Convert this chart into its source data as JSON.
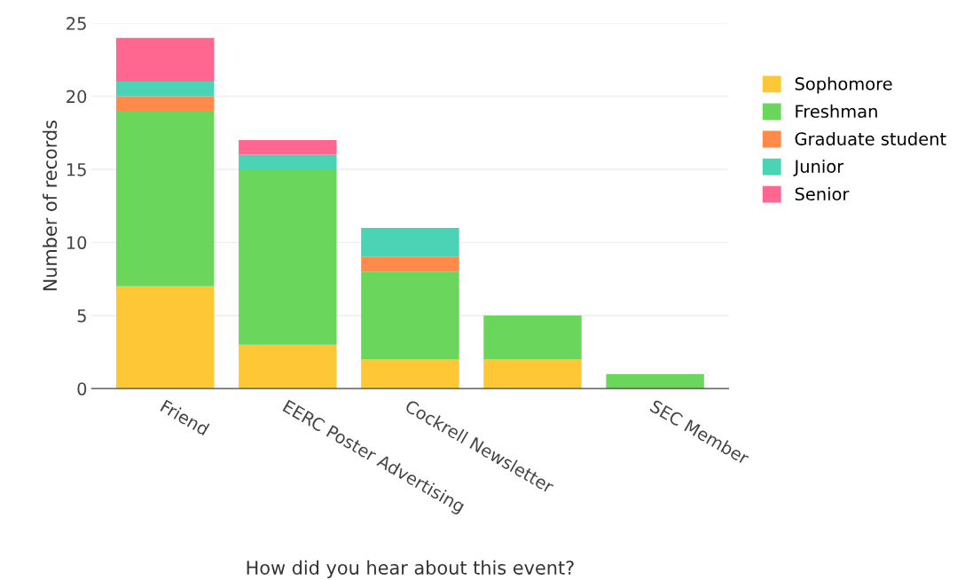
{
  "chart_data": {
    "type": "bar",
    "stacked": true,
    "xlabel": "How did you hear about this event?",
    "ylabel": "Number of records",
    "categories": [
      "Friend",
      "EERC Poster Advertising",
      "Cockrell Newsletter",
      null,
      "SEC Member"
    ],
    "series": [
      {
        "name": "Sophomore",
        "color": "#fdc735",
        "values": [
          7,
          3,
          2,
          2,
          0
        ]
      },
      {
        "name": "Freshman",
        "color": "#6bd65c",
        "values": [
          12,
          12,
          6,
          3,
          1
        ]
      },
      {
        "name": "Graduate student",
        "color": "#ff8a4a",
        "values": [
          1,
          0,
          1,
          0,
          0
        ]
      },
      {
        "name": "Junior",
        "color": "#4ad3b5",
        "values": [
          1,
          1,
          2,
          0,
          0
        ]
      },
      {
        "name": "Senior",
        "color": "#ff6690",
        "values": [
          3,
          1,
          0,
          0,
          0
        ]
      }
    ],
    "ylim": [
      0,
      25
    ],
    "yticks": [
      0,
      5,
      10,
      15,
      20,
      25
    ],
    "grid": "y",
    "legend": "right"
  }
}
